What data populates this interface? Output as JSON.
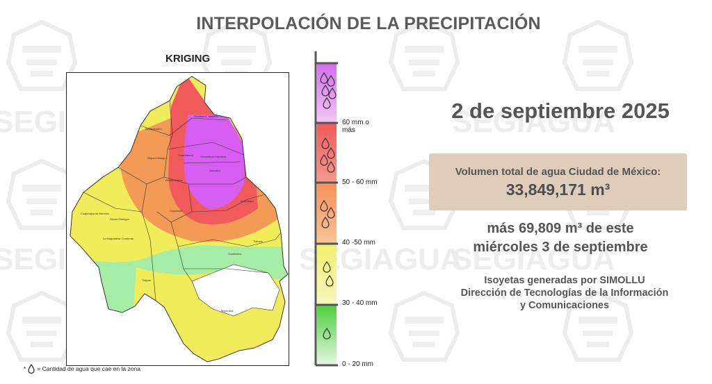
{
  "main_title": "INTERPOLACIÓN DE LA PRECIPITACIÓN",
  "watermark_text": "SEGIAGUA",
  "map": {
    "method": "KRIGING",
    "place_labels": [
      "Gustavo A. Madero",
      "Azcapotzalco",
      "Miguel Hidalgo",
      "Cuauhtémoc",
      "Venustiano Carranza",
      "Iztacalco",
      "Benito Juárez",
      "Cuajimalpa de Morelos",
      "Álvaro Obregón",
      "Coyoacán",
      "Iztapalapa",
      "La Magdalena Contreras",
      "Tlalpan",
      "Xochimilco",
      "Tláhuac",
      "Milpa Alta"
    ],
    "colors": {
      "purple": "#d65ef0",
      "red": "#f05a5a",
      "orange": "#f39a56",
      "yellow": "#f0ec5a",
      "green": "#a5eca5"
    }
  },
  "legend_note": "= Cantidad de agua que cae en la zona",
  "legend_note_prefix": "*",
  "scale": {
    "labels": [
      "60 mm o más",
      "50 - 60 mm",
      "40 -50 mm",
      "30 - 40 mm",
      "0 - 20 mm"
    ],
    "colors": [
      "#df8ef0",
      "#f07070",
      "#f5a870",
      "#f3f08a",
      "#6fdb5c"
    ]
  },
  "date": "2 de septiembre 2025",
  "volume": {
    "label": "Volumen total de agua Ciudad de México:",
    "value": "33,849,171 m³"
  },
  "extra": {
    "line1": "más 69,809 m³ de este",
    "line2": "miércoles 3 de septiembre"
  },
  "credits": {
    "line1": "Isoyetas generadas por SIMOLLU",
    "line2": "Dirección de Tecnologías de la Información",
    "line3": "y Comunicaciones"
  }
}
